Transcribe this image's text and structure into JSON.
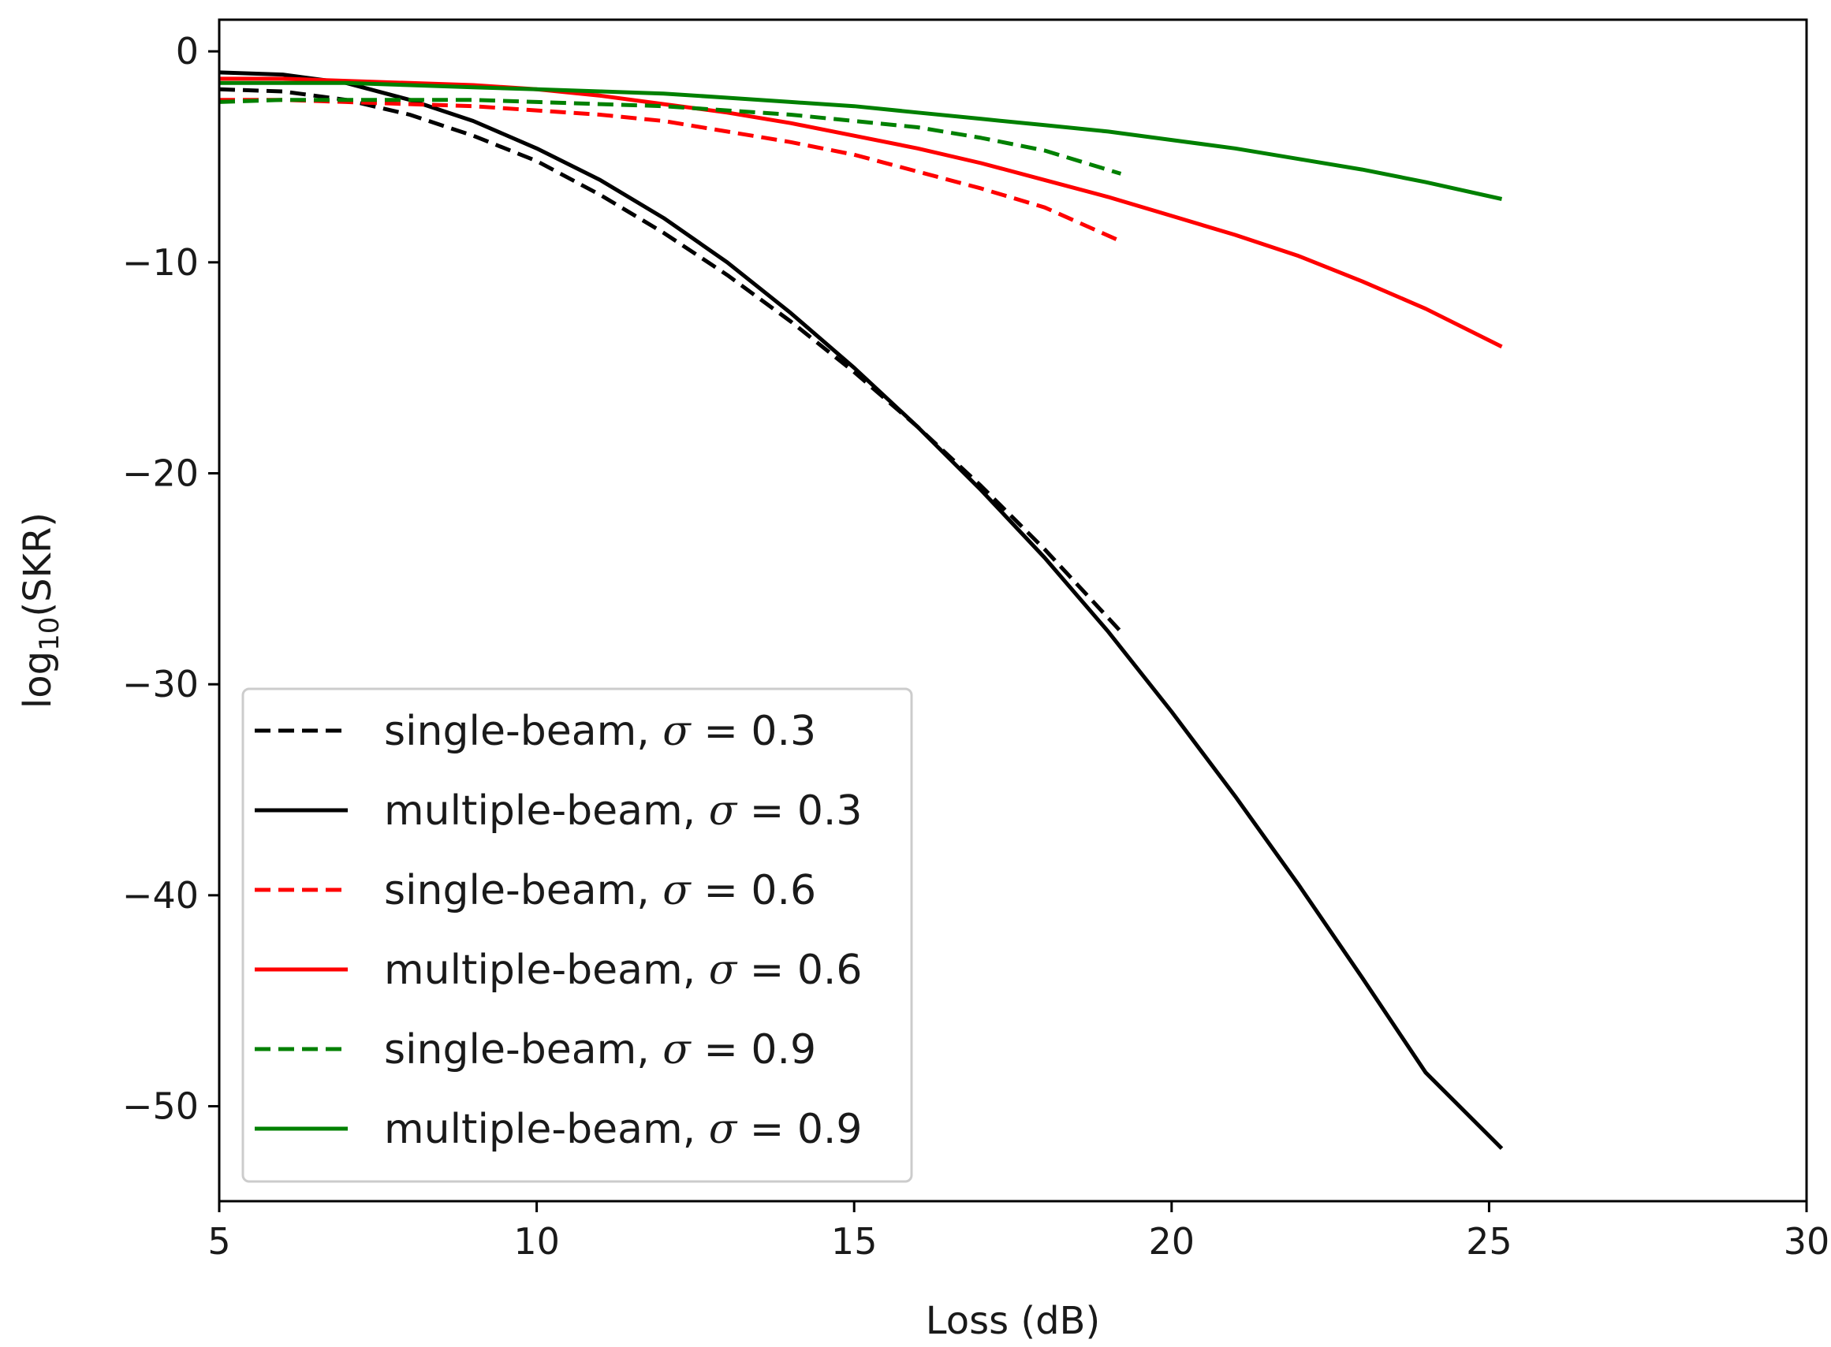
{
  "chart_data": {
    "type": "line",
    "title": "",
    "xlabel": "Loss (dB)",
    "ylabel_base": "log",
    "ylabel_sub": "10",
    "ylabel_rest": "(SKR)",
    "xlim": [
      5,
      30
    ],
    "ylim": [
      -54.5,
      1.5
    ],
    "xticks": [
      5,
      10,
      15,
      20,
      25,
      30
    ],
    "xtick_labels": [
      "5",
      "10",
      "15",
      "20",
      "25",
      "30"
    ],
    "yticks": [
      0,
      -10,
      -20,
      -30,
      -40,
      -50
    ],
    "ytick_labels": [
      "0",
      "−10",
      "−20",
      "−30",
      "−40",
      "−50"
    ],
    "grid": false,
    "legend_position": "lower-left",
    "series": [
      {
        "name": "single-beam, σ = 0.3",
        "label_main": "single-beam, ",
        "label_sym": "σ",
        "label_val": " = 0.3",
        "color": "#000000",
        "style": "dashed",
        "x": [
          5,
          6,
          7,
          8,
          9,
          10,
          11,
          12,
          13,
          14,
          15,
          16,
          17,
          18,
          19.2
        ],
        "y": [
          -1.8,
          -1.9,
          -2.3,
          -3.0,
          -4.0,
          -5.2,
          -6.8,
          -8.6,
          -10.6,
          -12.8,
          -15.2,
          -17.8,
          -20.6,
          -23.6,
          -27.5
        ]
      },
      {
        "name": "multiple-beam, σ = 0.3",
        "label_main": "multiple-beam, ",
        "label_sym": "σ",
        "label_val": " = 0.3",
        "color": "#000000",
        "style": "solid",
        "x": [
          5,
          6,
          7,
          8,
          9,
          10,
          11,
          12,
          13,
          14,
          15,
          16,
          17,
          18,
          19,
          20,
          21,
          22,
          23,
          24,
          25.2
        ],
        "y": [
          -1.0,
          -1.1,
          -1.5,
          -2.3,
          -3.3,
          -4.6,
          -6.1,
          -7.9,
          -10.0,
          -12.4,
          -15.0,
          -17.8,
          -20.8,
          -24.0,
          -27.5,
          -31.3,
          -35.3,
          -39.5,
          -43.9,
          -48.4,
          -52.0
        ]
      },
      {
        "name": "single-beam, σ = 0.6",
        "label_main": "single-beam, ",
        "label_sym": "σ",
        "label_val": " = 0.6",
        "color": "#ff0000",
        "style": "dashed",
        "x": [
          5,
          6,
          7,
          8,
          9,
          10,
          11,
          12,
          13,
          14,
          15,
          16,
          17,
          18,
          19.2
        ],
        "y": [
          -2.3,
          -2.3,
          -2.4,
          -2.5,
          -2.6,
          -2.8,
          -3.0,
          -3.3,
          -3.8,
          -4.3,
          -4.9,
          -5.7,
          -6.5,
          -7.4,
          -9.0
        ]
      },
      {
        "name": "multiple-beam, σ = 0.6",
        "label_main": "multiple-beam, ",
        "label_sym": "σ",
        "label_val": " = 0.6",
        "color": "#ff0000",
        "style": "solid",
        "x": [
          5,
          6,
          7,
          8,
          9,
          10,
          11,
          12,
          13,
          14,
          15,
          16,
          17,
          18,
          19,
          20,
          21,
          22,
          23,
          24,
          25.2
        ],
        "y": [
          -1.3,
          -1.3,
          -1.4,
          -1.5,
          -1.6,
          -1.8,
          -2.1,
          -2.5,
          -2.9,
          -3.4,
          -4.0,
          -4.6,
          -5.3,
          -6.1,
          -6.9,
          -7.8,
          -8.7,
          -9.7,
          -10.9,
          -12.2,
          -14.0
        ]
      },
      {
        "name": "single-beam, σ = 0.9",
        "label_main": "single-beam, ",
        "label_sym": "σ",
        "label_val": " = 0.9",
        "color": "#008000",
        "style": "dashed",
        "x": [
          5,
          6,
          7,
          8,
          9,
          10,
          11,
          12,
          13,
          14,
          15,
          16,
          17,
          18,
          19.2
        ],
        "y": [
          -2.4,
          -2.3,
          -2.3,
          -2.3,
          -2.3,
          -2.4,
          -2.5,
          -2.6,
          -2.8,
          -3.0,
          -3.3,
          -3.6,
          -4.1,
          -4.7,
          -5.8
        ]
      },
      {
        "name": "multiple-beam, σ = 0.9",
        "label_main": "multiple-beam, ",
        "label_sym": "σ",
        "label_val": " = 0.9",
        "color": "#008000",
        "style": "solid",
        "x": [
          5,
          6,
          7,
          8,
          9,
          10,
          11,
          12,
          13,
          14,
          15,
          16,
          17,
          18,
          19,
          20,
          21,
          22,
          23,
          24,
          25.2
        ],
        "y": [
          -1.5,
          -1.5,
          -1.5,
          -1.6,
          -1.7,
          -1.8,
          -1.9,
          -2.0,
          -2.2,
          -2.4,
          -2.6,
          -2.9,
          -3.2,
          -3.5,
          -3.8,
          -4.2,
          -4.6,
          -5.1,
          -5.6,
          -6.2,
          -7.0
        ]
      }
    ]
  }
}
